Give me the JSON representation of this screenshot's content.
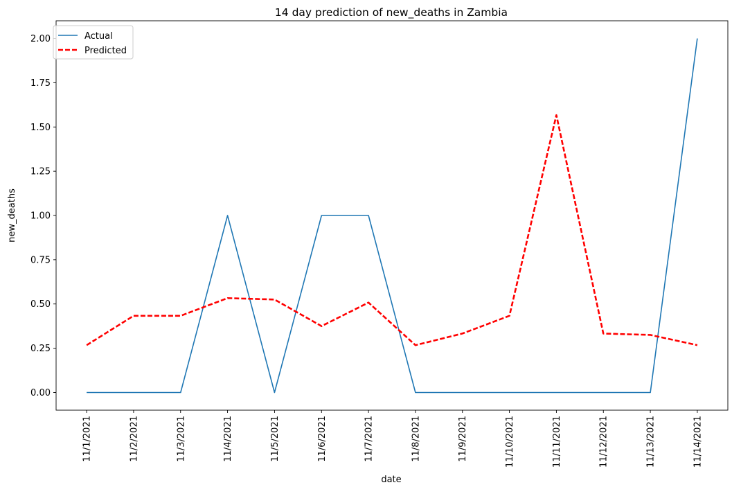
{
  "chart_data": {
    "type": "line",
    "title": "14 day prediction of new_deaths in Zambia",
    "xlabel": "date",
    "ylabel": "new_deaths",
    "x": [
      "11/1/2021",
      "11/2/2021",
      "11/3/2021",
      "11/4/2021",
      "11/5/2021",
      "11/6/2021",
      "11/7/2021",
      "11/8/2021",
      "11/9/2021",
      "11/10/2021",
      "11/11/2021",
      "11/12/2021",
      "11/13/2021",
      "11/14/2021"
    ],
    "yticks": [
      "0.00",
      "0.25",
      "0.50",
      "0.75",
      "1.00",
      "1.25",
      "1.50",
      "1.75",
      "2.00"
    ],
    "ylim": [
      -0.1,
      2.1
    ],
    "grid": false,
    "legend_position": "top-left",
    "series": [
      {
        "name": "Actual",
        "color": "#1f77b4",
        "style": "solid",
        "values": [
          0,
          0,
          0,
          1,
          0,
          1,
          1,
          0,
          0,
          0,
          0,
          0,
          0,
          2
        ]
      },
      {
        "name": "Predicted",
        "color": "#ff0000",
        "style": "dashed",
        "values": [
          0.267,
          0.433,
          0.433,
          0.533,
          0.525,
          0.375,
          0.508,
          0.267,
          0.333,
          0.433,
          1.567,
          0.333,
          0.325,
          0.267
        ]
      }
    ]
  }
}
